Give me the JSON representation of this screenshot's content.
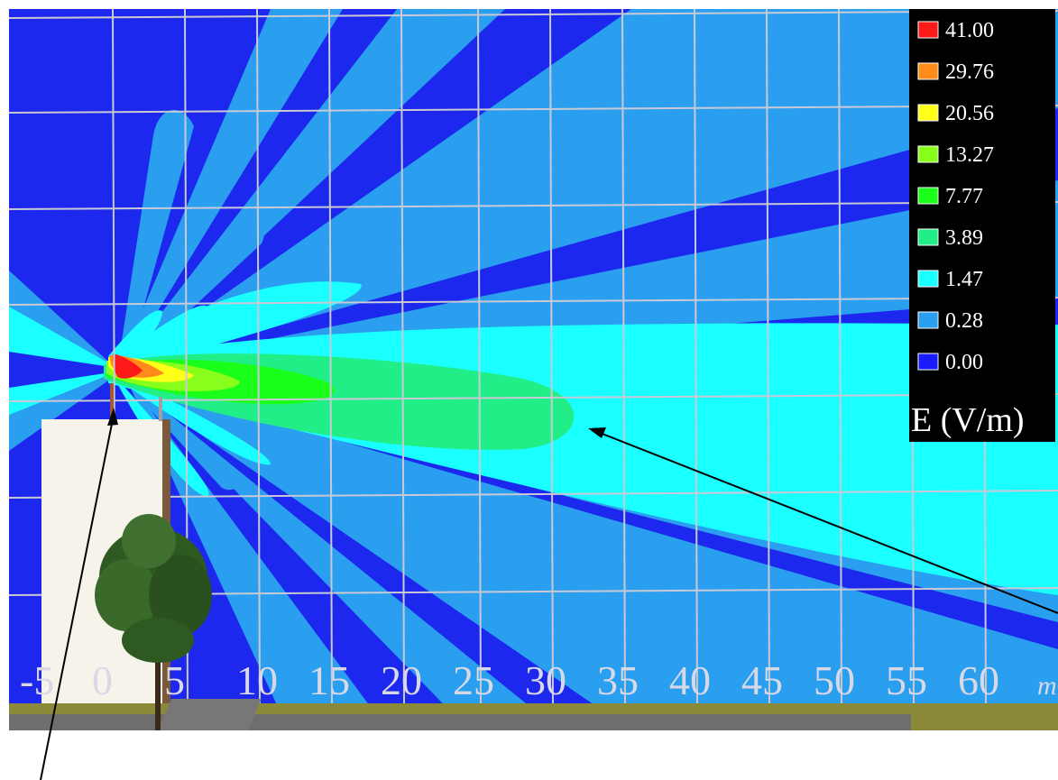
{
  "legend": {
    "title": "E (V/m)",
    "entries": [
      {
        "label": "41.00",
        "color": "#ff1a1a"
      },
      {
        "label": "29.76",
        "color": "#ff8c1a"
      },
      {
        "label": "20.56",
        "color": "#ffff1a"
      },
      {
        "label": "13.27",
        "color": "#88ff1a"
      },
      {
        "label": "7.77",
        "color": "#1aff1a"
      },
      {
        "label": "3.89",
        "color": "#22ee88"
      },
      {
        "label": "1.47",
        "color": "#1affff"
      },
      {
        "label": "0.28",
        "color": "#2a9ff0"
      },
      {
        "label": "0.00",
        "color": "#1a1aff"
      }
    ]
  },
  "axis": {
    "tick_labels": [
      "-5",
      "0",
      "5",
      "10",
      "15",
      "20",
      "25",
      "30",
      "35",
      "40",
      "45",
      "50",
      "55",
      "60"
    ],
    "unit": "m"
  },
  "colors": {
    "background_field": "#1c28ee",
    "field_light": "#2a9ff0",
    "field_cyan": "#1affff",
    "grid": "#c9c9d6",
    "ground": "#8a8a3a",
    "road": "#6e6e6e"
  }
}
